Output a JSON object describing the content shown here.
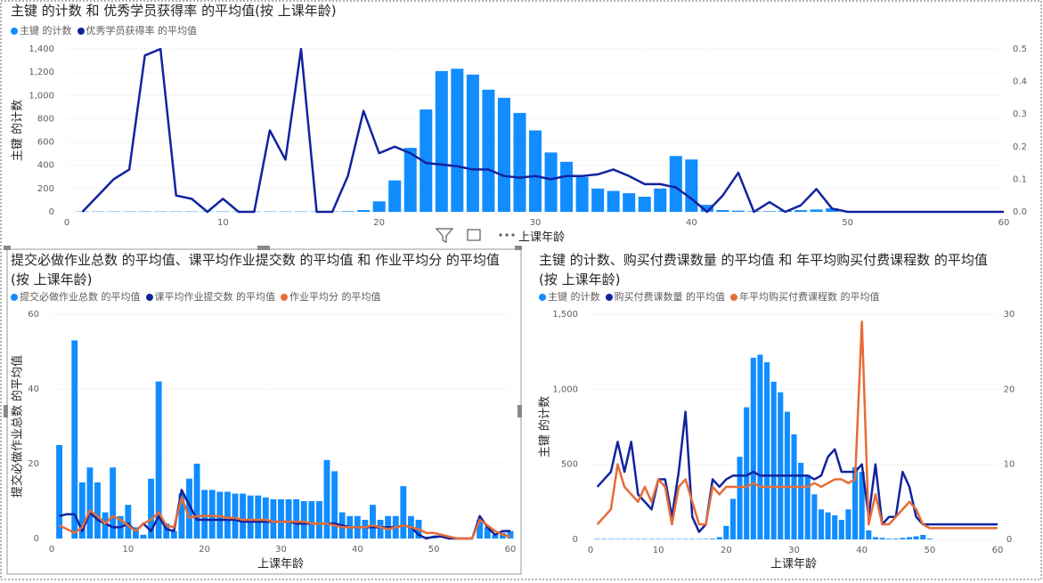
{
  "chart_data": [
    {
      "type": "combo",
      "title": "主键 的计数 和 优秀学员获得率 的平均值(按 上课年龄)",
      "x_label": "上课年龄",
      "y_label": "主键 的计数",
      "x": [
        1,
        2,
        3,
        4,
        5,
        6,
        7,
        8,
        9,
        10,
        11,
        12,
        13,
        14,
        15,
        16,
        17,
        18,
        19,
        20,
        21,
        22,
        23,
        24,
        25,
        26,
        27,
        28,
        29,
        30,
        31,
        32,
        33,
        34,
        35,
        36,
        37,
        38,
        39,
        40,
        41,
        42,
        43,
        44,
        45,
        46,
        47,
        48,
        49,
        50,
        51,
        52,
        53,
        54,
        55,
        56,
        57,
        58,
        59,
        60
      ],
      "xlim": [
        0,
        60
      ],
      "xticks": [
        0,
        10,
        20,
        30,
        40,
        50,
        60
      ],
      "ylim": [
        0,
        1400
      ],
      "yticks": [
        0,
        200,
        400,
        600,
        800,
        {
          "value": 1000,
          "label": "1,000"
        },
        {
          "value": 1200,
          "label": "1,200"
        },
        {
          "value": 1400,
          "label": "1,400"
        }
      ],
      "y2lim": [
        0,
        0.5
      ],
      "y2ticks": [
        {
          "value": 0,
          "label": "0.0"
        },
        0.1,
        0.2,
        0.3,
        0.4,
        0.5
      ],
      "grid": true,
      "series": [
        {
          "name": "主键 的计数",
          "color": "#118DFF",
          "mark": "bar",
          "values": [
            3,
            3,
            3,
            3,
            3,
            3,
            3,
            3,
            3,
            3,
            3,
            3,
            3,
            3,
            3,
            3,
            3,
            5,
            15,
            90,
            270,
            550,
            880,
            1210,
            1230,
            1180,
            1050,
            980,
            850,
            700,
            510,
            430,
            300,
            200,
            180,
            160,
            130,
            200,
            480,
            450,
            60,
            15,
            10,
            5,
            5,
            10,
            15,
            20,
            30,
            5,
            null,
            null,
            null,
            null,
            null,
            null,
            null,
            null,
            null,
            null
          ]
        },
        {
          "name": "优秀学员获得率 的平均值",
          "color": "#12239E",
          "mark": "line",
          "axis": "y2",
          "values": [
            0,
            0.05,
            0.1,
            0.13,
            0.48,
            0.5,
            0.05,
            0.04,
            0,
            0.04,
            0,
            0,
            0.25,
            0.16,
            0.5,
            0,
            0,
            0.11,
            0.31,
            0.18,
            0.2,
            0.18,
            0.15,
            0.145,
            0.14,
            0.13,
            0.13,
            0.11,
            0.105,
            0.11,
            0.1,
            0.11,
            0.11,
            0.115,
            0.13,
            0.11,
            0.085,
            0.085,
            0.075,
            0.04,
            0,
            0.05,
            0.12,
            0,
            0.03,
            0,
            0.02,
            0.07,
            0.01,
            0,
            0,
            0,
            0,
            0,
            0,
            0,
            0,
            0,
            0,
            0
          ]
        }
      ]
    },
    {
      "type": "combo",
      "title": "提交必做作业总数 的平均值、课平均作业提交数 的平均值 和 作业平均分 的平均值(按 上课年龄)",
      "x_label": "上课年龄",
      "y_label": "提交必做作业总数 的平均值",
      "x": [
        1,
        2,
        3,
        4,
        5,
        6,
        7,
        8,
        9,
        10,
        11,
        12,
        13,
        14,
        15,
        16,
        17,
        18,
        19,
        20,
        21,
        22,
        23,
        24,
        25,
        26,
        27,
        28,
        29,
        30,
        31,
        32,
        33,
        34,
        35,
        36,
        37,
        38,
        39,
        40,
        41,
        42,
        43,
        44,
        45,
        46,
        47,
        48,
        49,
        50,
        51,
        52,
        53,
        54,
        55,
        56,
        57,
        58,
        59,
        60
      ],
      "xlim": [
        0,
        60
      ],
      "xticks": [
        0,
        10,
        20,
        30,
        40,
        50,
        60
      ],
      "ylim": [
        0,
        60
      ],
      "yticks": [
        0,
        20,
        40,
        60
      ],
      "grid": true,
      "series": [
        {
          "name": "提交必做作业总数 的平均值",
          "color": "#118DFF",
          "mark": "bar",
          "values": [
            25,
            null,
            53,
            15,
            19,
            15,
            7,
            19,
            6,
            9,
            3,
            1,
            16,
            42,
            4,
            2,
            12,
            16,
            20,
            13,
            13,
            12.5,
            12.5,
            12,
            12,
            11.5,
            11.5,
            11,
            10.5,
            10.5,
            10.5,
            10.5,
            10,
            10,
            10,
            21,
            18,
            7,
            6,
            6,
            5,
            9,
            5,
            6,
            6,
            14,
            6,
            5,
            0.5,
            0.5,
            null,
            null,
            null,
            null,
            null,
            5,
            3,
            1,
            1.5,
            2
          ]
        },
        {
          "name": "课平均作业提交数 的平均值",
          "color": "#12239E",
          "mark": "line",
          "values": [
            6,
            6.5,
            6.5,
            2,
            7,
            5,
            4,
            3,
            3,
            4,
            2,
            4,
            2,
            6,
            2.5,
            2,
            13,
            9,
            5,
            5,
            5,
            5,
            5,
            5,
            4.5,
            4.5,
            4.5,
            4.5,
            4.5,
            4.5,
            4.5,
            4,
            4,
            4,
            4,
            4,
            4,
            3.5,
            3,
            3,
            3,
            3,
            3,
            3,
            3,
            3.5,
            3,
            1,
            0,
            0.5,
            0.5,
            0,
            0,
            0,
            0,
            6,
            3,
            1,
            2,
            2
          ]
        },
        {
          "name": "作业平均分 的平均值",
          "color": "#E66C37",
          "mark": "line",
          "values": [
            3.5,
            2.5,
            1.5,
            3,
            7.5,
            6,
            4,
            6,
            5,
            3.5,
            2,
            4,
            5,
            7,
            3.5,
            3,
            11,
            5.5,
            6,
            6,
            6,
            6,
            5.5,
            5.5,
            5,
            5,
            5,
            5,
            4.5,
            4.5,
            4.5,
            4.5,
            4.5,
            4,
            4,
            4,
            3.5,
            3,
            3,
            3,
            3,
            3.5,
            3,
            2.5,
            3,
            3.5,
            3,
            2.5,
            1.5,
            1.5,
            1,
            0.5,
            0,
            0,
            0,
            5,
            3.5,
            2,
            1,
            0.5
          ]
        }
      ]
    },
    {
      "type": "combo",
      "title": "主键 的计数、购买付费课数量 的平均值 和 年平均购买付费课程数 的平均值(按 上课年龄)",
      "x_label": "上课年龄",
      "y_label": "主键 的计数",
      "x": [
        1,
        2,
        3,
        4,
        5,
        6,
        7,
        8,
        9,
        10,
        11,
        12,
        13,
        14,
        15,
        16,
        17,
        18,
        19,
        20,
        21,
        22,
        23,
        24,
        25,
        26,
        27,
        28,
        29,
        30,
        31,
        32,
        33,
        34,
        35,
        36,
        37,
        38,
        39,
        40,
        41,
        42,
        43,
        44,
        45,
        46,
        47,
        48,
        49,
        50,
        51,
        52,
        53,
        54,
        55,
        56,
        57,
        58,
        59,
        60
      ],
      "xlim": [
        0,
        60
      ],
      "xticks": [
        0,
        10,
        20,
        30,
        40,
        50,
        60
      ],
      "ylim": [
        0,
        1500
      ],
      "yticks": [
        0,
        500,
        {
          "value": 1000,
          "label": "1,000"
        },
        {
          "value": 1500,
          "label": "1,500"
        }
      ],
      "y2lim": [
        0,
        30
      ],
      "y2ticks": [
        0,
        10,
        20,
        30
      ],
      "grid": true,
      "series": [
        {
          "name": "主键 的计数",
          "color": "#118DFF",
          "mark": "bar",
          "values": [
            3,
            3,
            3,
            3,
            3,
            3,
            3,
            3,
            3,
            3,
            3,
            3,
            3,
            3,
            3,
            3,
            3,
            5,
            15,
            90,
            270,
            550,
            880,
            1210,
            1230,
            1180,
            1050,
            980,
            850,
            700,
            510,
            430,
            300,
            200,
            180,
            160,
            130,
            200,
            480,
            450,
            60,
            15,
            10,
            5,
            5,
            10,
            15,
            20,
            30,
            5,
            null,
            null,
            null,
            null,
            null,
            null,
            null,
            null,
            null,
            null
          ]
        },
        {
          "name": "购买付费课数量 的平均值",
          "color": "#12239E",
          "mark": "line",
          "axis": "y2",
          "values": [
            7,
            8,
            9,
            13,
            9,
            13,
            6,
            5,
            4,
            8,
            8,
            3,
            9,
            17,
            3,
            1,
            2,
            8,
            7,
            8,
            8.5,
            8.5,
            8.5,
            9,
            8.5,
            8.5,
            8.5,
            8.5,
            8.5,
            8.5,
            8.5,
            8.5,
            8,
            8.5,
            11,
            12,
            9,
            9,
            9,
            10,
            3,
            10,
            2,
            3,
            3,
            9,
            7,
            3,
            2,
            2,
            2,
            2,
            2,
            2,
            2,
            2,
            2,
            2,
            2,
            2
          ]
        },
        {
          "name": "年平均购买付费课程数 的平均值",
          "color": "#E66C37",
          "mark": "line",
          "axis": "y2",
          "values": [
            2,
            3,
            4,
            10,
            7,
            6,
            5,
            7,
            5,
            8,
            7,
            2,
            7,
            8,
            5,
            2,
            2,
            7,
            6,
            7,
            7,
            7,
            7,
            7.5,
            7,
            7,
            7,
            7,
            7,
            7,
            7,
            7,
            7.5,
            7,
            7.5,
            8,
            8,
            7.5,
            8,
            29,
            2,
            6,
            2,
            2,
            3,
            4,
            5,
            4,
            2,
            1.5,
            1.5,
            1.5,
            1.5,
            1.5,
            1.5,
            1.5,
            1.5,
            1.5,
            1.5,
            1.5
          ]
        }
      ]
    }
  ]
}
